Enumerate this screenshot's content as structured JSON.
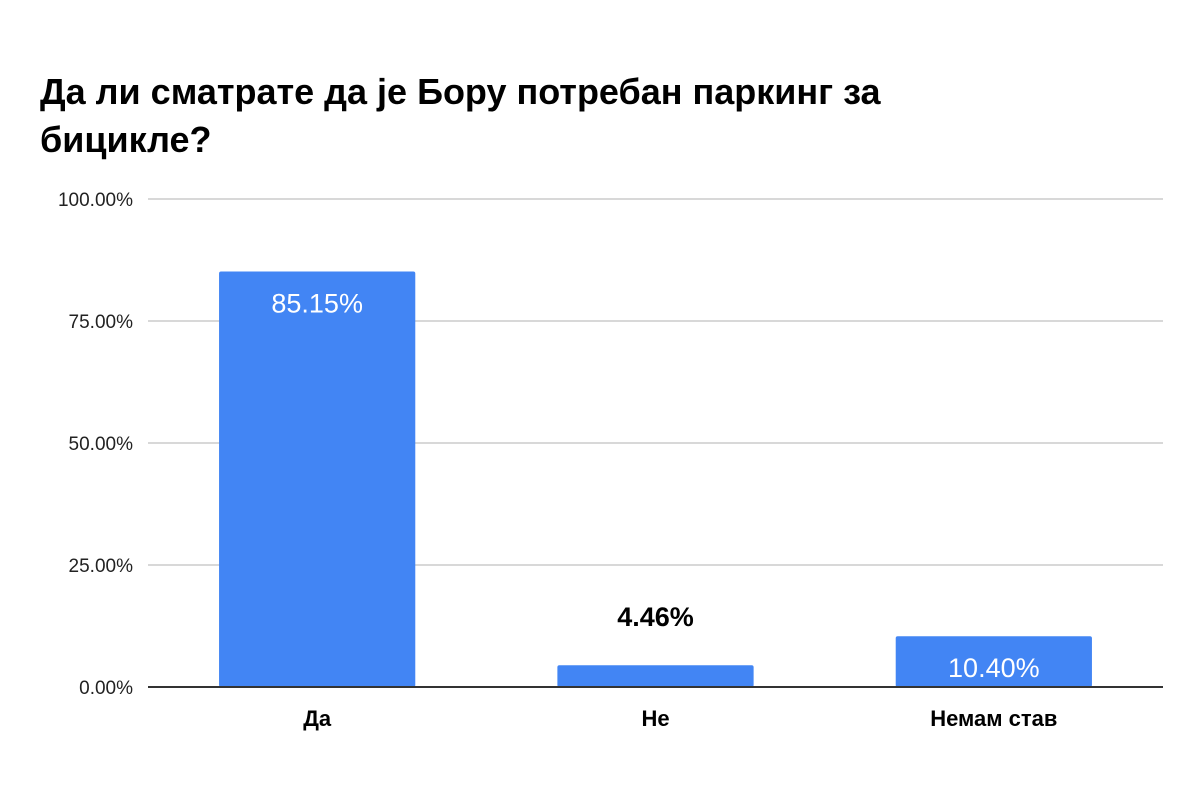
{
  "chart_data": {
    "type": "bar",
    "title": "Да ли сматрате да је Бору потребан паркинг за бицикле?",
    "categories": [
      "Да",
      "Не",
      "Немам став"
    ],
    "values": [
      85.15,
      4.46,
      10.4
    ],
    "data_labels": [
      "85.15%",
      "4.46%",
      "10.40%"
    ],
    "ylim": [
      0,
      100
    ],
    "yticks": [
      0,
      25,
      50,
      75,
      100
    ],
    "ytick_labels": [
      "0.00%",
      "25.00%",
      "50.00%",
      "75.00%",
      "100.00%"
    ],
    "xlabel": "",
    "ylabel": "",
    "grid": true,
    "legend": "none",
    "bar_color": "#4285f4",
    "gridline_color": "#cccccc",
    "axis_color": "#333333"
  }
}
